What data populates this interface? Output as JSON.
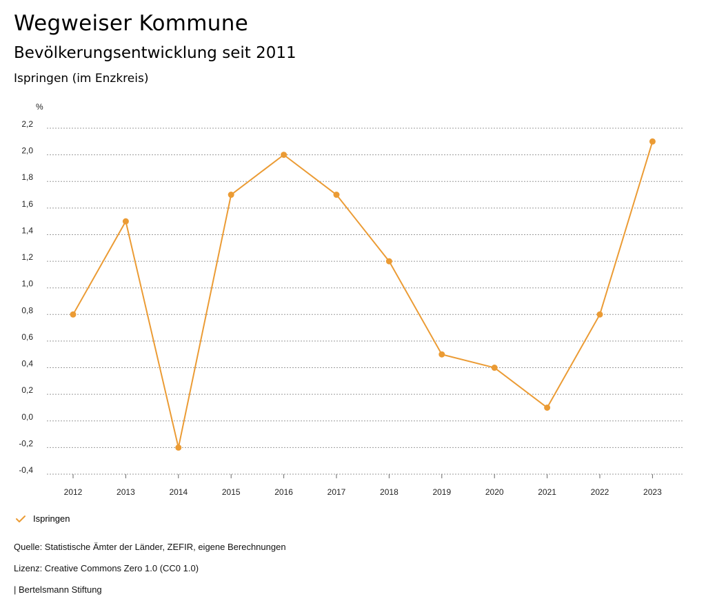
{
  "header": {
    "title": "Wegweiser Kommune",
    "subtitle": "Bevölkerungsentwicklung seit 2011",
    "region": "Ispringen (im Enzkreis)"
  },
  "colors": {
    "series": "#EB9B34",
    "grid": "#999999"
  },
  "chart_data": {
    "type": "line",
    "ylabel": "%",
    "ylim": [
      -0.4,
      2.2
    ],
    "yticks": [
      2.2,
      2.0,
      1.8,
      1.6,
      1.4,
      1.2,
      1.0,
      0.8,
      0.6,
      0.4,
      0.2,
      0.0,
      -0.2,
      -0.4
    ],
    "ytick_labels": [
      "2,2",
      "2,0",
      "1,8",
      "1,6",
      "1,4",
      "1,2",
      "1,0",
      "0,8",
      "0,6",
      "0,4",
      "0,2",
      "0,0",
      "-0,2",
      "-0,4"
    ],
    "categories": [
      "2012",
      "2013",
      "2014",
      "2015",
      "2016",
      "2017",
      "2018",
      "2019",
      "2020",
      "2021",
      "2022",
      "2023"
    ],
    "series": [
      {
        "name": "Ispringen",
        "values": [
          0.8,
          1.5,
          -0.2,
          1.7,
          2.0,
          1.7,
          1.2,
          0.5,
          0.4,
          0.1,
          0.8,
          2.1
        ]
      }
    ],
    "grid": true,
    "legend": "bottom-left"
  },
  "legend": {
    "label": "Ispringen",
    "icon": "check-icon"
  },
  "footer": {
    "source": "Quelle: Statistische Ämter der Länder, ZEFIR, eigene Berechnungen",
    "license": "Lizenz: Creative Commons Zero 1.0 (CC0 1.0)",
    "publisher": "| Bertelsmann Stiftung"
  }
}
